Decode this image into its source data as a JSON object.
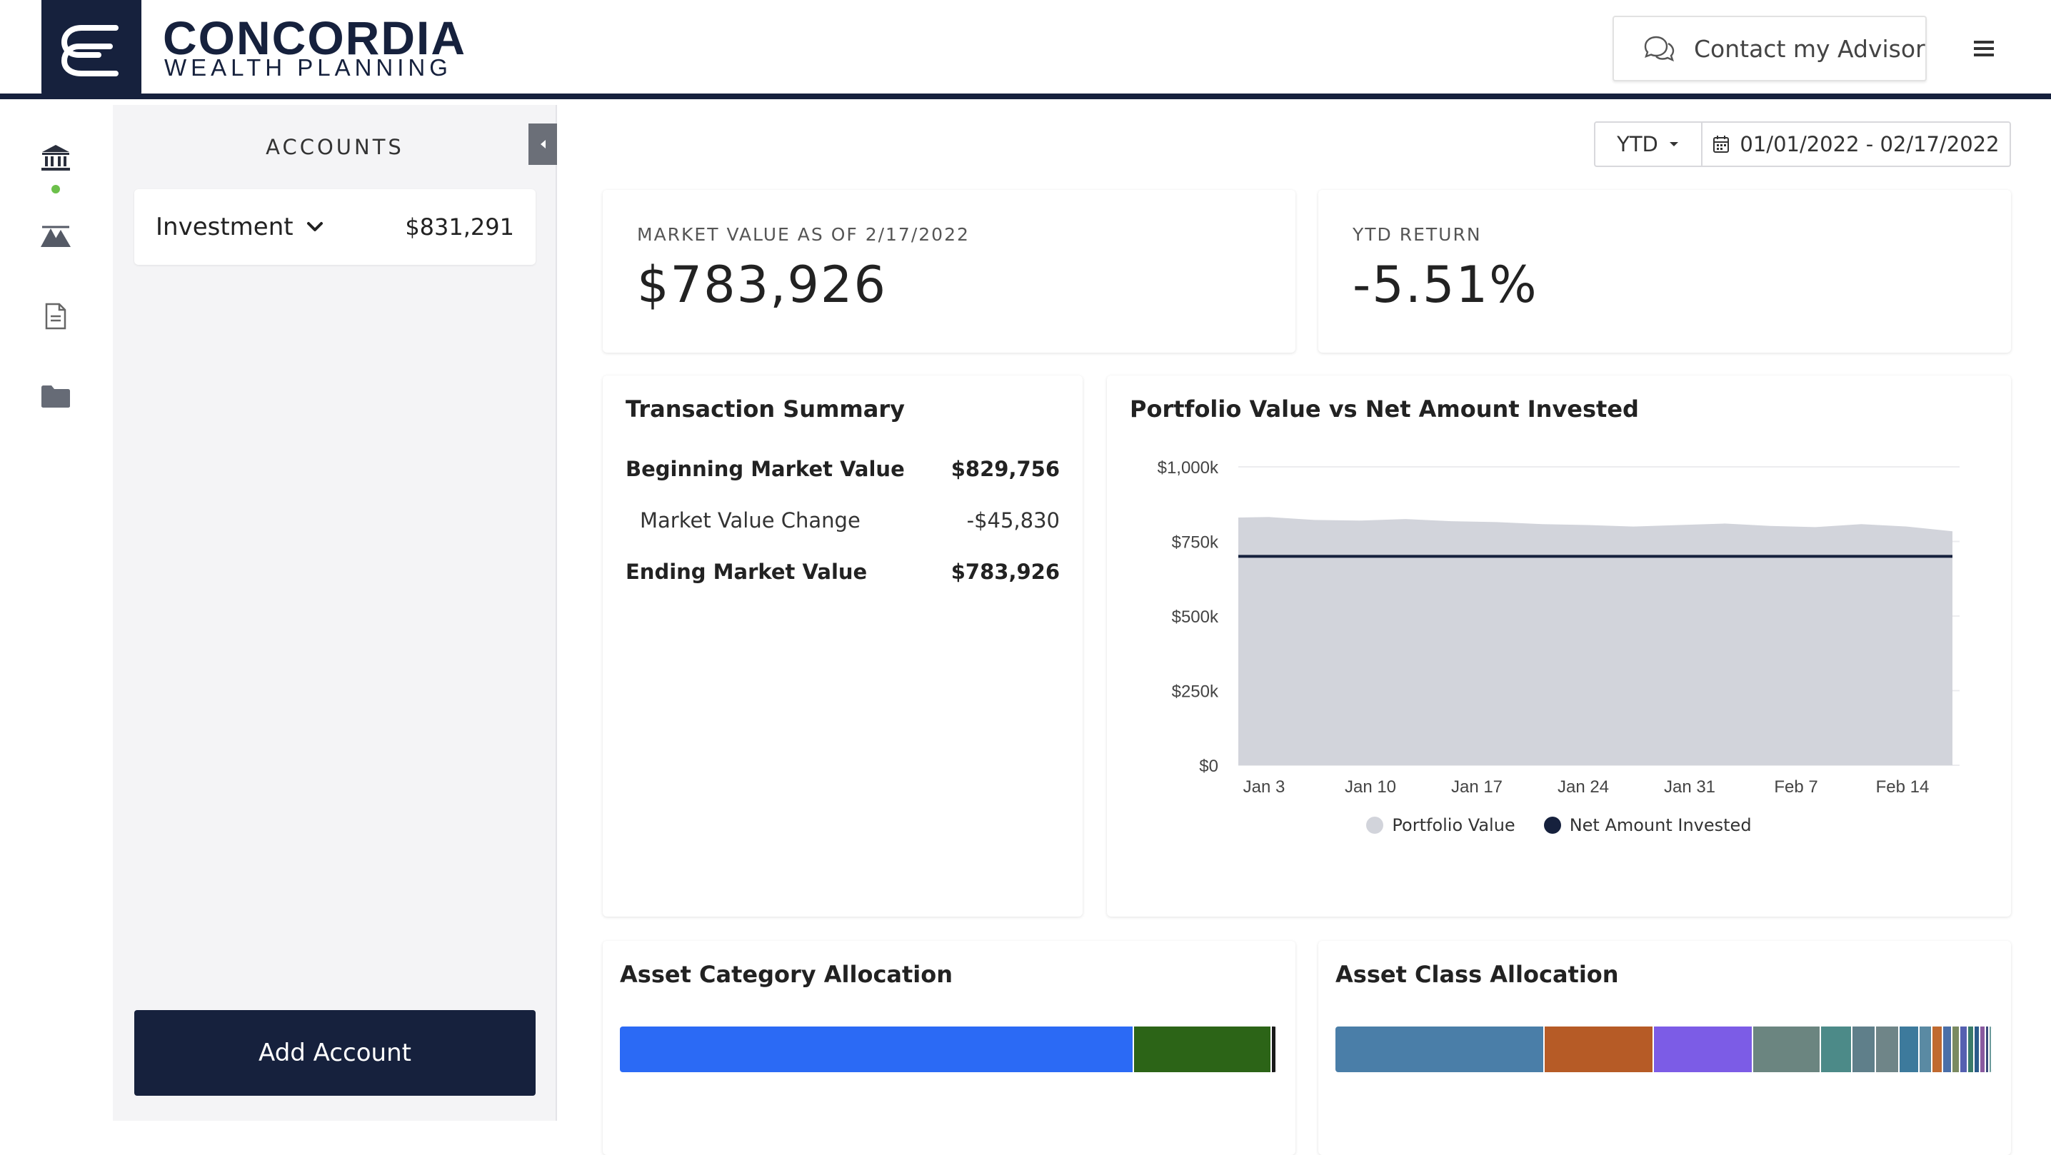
{
  "header": {
    "brand_name": "CONCORDIA",
    "brand_sub": "WEALTH PLANNING",
    "contact_label": "Contact my Advisor"
  },
  "rail": {
    "items": [
      "bank-icon",
      "mountains-icon",
      "document-icon",
      "folder-icon"
    ]
  },
  "accounts": {
    "title": "ACCOUNTS",
    "items": [
      {
        "name": "Investment",
        "value": "$831,291"
      }
    ],
    "add_label": "Add Account"
  },
  "date_filter": {
    "period": "YTD",
    "range": "01/01/2022 - 02/17/2022"
  },
  "kpis": {
    "market_value_label": "MARKET VALUE AS OF 2/17/2022",
    "market_value": "$783,926",
    "ytd_return_label": "YTD RETURN",
    "ytd_return": "-5.51%"
  },
  "transaction_summary": {
    "title": "Transaction Summary",
    "rows": [
      {
        "label": "Beginning Market Value",
        "value": "$829,756"
      },
      {
        "label": "Market Value Change",
        "value": "-$45,830"
      },
      {
        "label": "Ending Market Value",
        "value": "$783,926"
      }
    ]
  },
  "portfolio_chart": {
    "title": "Portfolio Value vs Net Amount Invested"
  },
  "chart_data": {
    "type": "area",
    "title": "Portfolio Value vs Net Amount Invested",
    "y_ticks": [
      "$1,000k",
      "$750k",
      "$500k",
      "$250k",
      "$0"
    ],
    "x_ticks": [
      "Jan 3",
      "Jan 10",
      "Jan 17",
      "Jan 24",
      "Jan 31",
      "Feb 7",
      "Feb 14"
    ],
    "ylim": [
      0,
      1000
    ],
    "xlim": [
      0,
      47
    ],
    "grid": true,
    "legend": "bottom",
    "series": [
      {
        "name": "Portfolio Value",
        "type": "area",
        "color": "#d2d4db",
        "x": [
          0,
          2,
          5,
          8,
          11,
          14,
          17,
          20,
          23,
          26,
          29,
          32,
          35,
          38,
          41,
          44,
          47
        ],
        "values": [
          830,
          832,
          822,
          820,
          825,
          818,
          815,
          808,
          805,
          800,
          805,
          810,
          802,
          798,
          808,
          800,
          784
        ]
      },
      {
        "name": "Net Amount Invested",
        "type": "line",
        "color": "#16213d",
        "x": [
          0,
          47
        ],
        "values": [
          700,
          700
        ]
      }
    ]
  },
  "asset_category": {
    "title": "Asset Category Allocation",
    "segments": [
      {
        "pct": 78.3,
        "color": "#2b6af5"
      },
      {
        "pct": 20.9,
        "color": "#2c6417"
      },
      {
        "pct": 0.8,
        "color": "#1a1a1a"
      }
    ]
  },
  "asset_class": {
    "title": "Asset Class Allocation",
    "segments": [
      {
        "pct": 31.8,
        "color": "#4a7ea8"
      },
      {
        "pct": 16.7,
        "color": "#b65b26"
      },
      {
        "pct": 15.1,
        "color": "#7c5ce6"
      },
      {
        "pct": 10.3,
        "color": "#6b8580"
      },
      {
        "pct": 4.8,
        "color": "#4c8a88"
      },
      {
        "pct": 3.6,
        "color": "#5f7f8a"
      },
      {
        "pct": 3.6,
        "color": "#6f8588"
      },
      {
        "pct": 3.0,
        "color": "#3d7a9c"
      },
      {
        "pct": 2.0,
        "color": "#5a8aa3"
      },
      {
        "pct": 1.6,
        "color": "#c06a30"
      },
      {
        "pct": 1.4,
        "color": "#4a6fa8"
      },
      {
        "pct": 1.2,
        "color": "#7a8a60"
      },
      {
        "pct": 1.2,
        "color": "#5560b0"
      },
      {
        "pct": 1.0,
        "color": "#3a7a6a"
      },
      {
        "pct": 0.9,
        "color": "#2a5a8a"
      },
      {
        "pct": 0.8,
        "color": "#8a5aa0"
      },
      {
        "pct": 0.6,
        "color": "#3a4a7a"
      },
      {
        "pct": 0.4,
        "color": "#6a9a9a"
      }
    ]
  }
}
